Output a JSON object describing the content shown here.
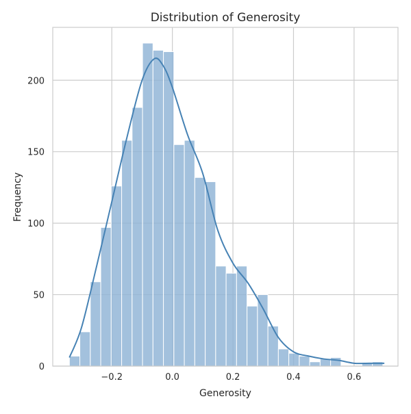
{
  "chart_data": {
    "type": "bar",
    "subtype": "histogram",
    "title": "Distribution of Generosity",
    "xlabel": "Generosity",
    "ylabel": "Frequency",
    "xlim": [
      -0.395,
      0.745
    ],
    "ylim": [
      0,
      237
    ],
    "x_ticks": [
      -0.2,
      0.0,
      0.2,
      0.4,
      0.6
    ],
    "x_tick_labels": [
      "−0.2",
      "0.0",
      "0.2",
      "0.4",
      "0.6"
    ],
    "y_ticks": [
      0,
      50,
      100,
      150,
      200
    ],
    "y_tick_labels": [
      "0",
      "50",
      "100",
      "150",
      "200"
    ],
    "grid": true,
    "bin_start": -0.34,
    "bin_width": 0.0345,
    "values": [
      7,
      24,
      59,
      97,
      126,
      158,
      181,
      226,
      221,
      220,
      155,
      158,
      132,
      129,
      70,
      65,
      70,
      42,
      50,
      28,
      12,
      9,
      7,
      3,
      5,
      6,
      0,
      0,
      2,
      3
    ],
    "bar_color": "#8fb3d6",
    "kde": {
      "color": "#4682b4",
      "x": [
        -0.34,
        -0.3,
        -0.25,
        -0.2,
        -0.15,
        -0.1,
        -0.06,
        -0.03,
        0.0,
        0.05,
        0.1,
        0.15,
        0.2,
        0.25,
        0.3,
        0.35,
        0.4,
        0.45,
        0.5,
        0.55,
        0.6,
        0.65,
        0.7
      ],
      "y": [
        6,
        27,
        70,
        115,
        160,
        200,
        215,
        210,
        195,
        162,
        135,
        95,
        72,
        58,
        40,
        20,
        10,
        7,
        5,
        4,
        2,
        2,
        2
      ]
    }
  }
}
